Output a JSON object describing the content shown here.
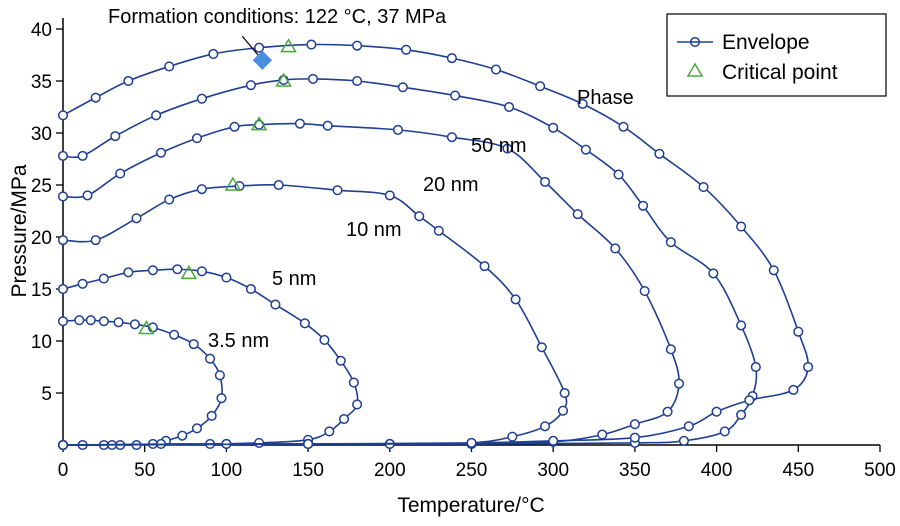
{
  "chart_data": {
    "type": "line",
    "xlabel": "Temperature/°C",
    "ylabel": "Pressure/MPa",
    "xlim": [
      0,
      500
    ],
    "ylim": [
      0,
      40
    ],
    "x_ticks": [
      0,
      50,
      100,
      150,
      200,
      250,
      300,
      350,
      400,
      450,
      500
    ],
    "y_ticks": [
      5,
      10,
      15,
      20,
      25,
      30,
      35,
      40
    ],
    "grid": false,
    "legend_position": "top-right",
    "legend": [
      {
        "label": "Envelope",
        "marker": "circle-line"
      },
      {
        "label": "Critical point",
        "marker": "triangle"
      }
    ],
    "colors": {
      "envelope": "#1f3f93",
      "critical": "#4aa83a",
      "formation": "#4a8fdf"
    },
    "annotations": {
      "formation": "Formation conditions: 122 °C, 37 MPa",
      "phase": "Phase",
      "labels": [
        "50 nm",
        "20 nm",
        "10 nm",
        "5 nm",
        "3.5 nm"
      ]
    },
    "formation_point": {
      "x": 122,
      "y": 37
    },
    "series": [
      {
        "label_index": 4,
        "critical": {
          "x": 51,
          "y": 11.2
        },
        "points": [
          [
            0,
            0
          ],
          [
            12,
            0
          ],
          [
            25,
            0
          ],
          [
            35,
            0
          ],
          [
            45,
            0
          ],
          [
            55,
            0.1
          ],
          [
            63,
            0.4
          ],
          [
            73,
            0.9
          ],
          [
            82,
            1.6
          ],
          [
            91,
            2.8
          ],
          [
            97,
            4.5
          ],
          [
            96,
            6.7
          ],
          [
            90,
            8.3
          ],
          [
            80,
            9.7
          ],
          [
            68,
            10.6
          ],
          [
            55,
            11.3
          ],
          [
            44,
            11.6
          ],
          [
            34,
            11.8
          ],
          [
            25,
            11.9
          ],
          [
            17,
            12
          ],
          [
            10,
            12
          ],
          [
            0,
            11.9
          ]
        ]
      },
      {
        "label_index": 3,
        "critical": {
          "x": 77,
          "y": 16.5
        },
        "points": [
          [
            0,
            0
          ],
          [
            30,
            0
          ],
          [
            60,
            0.1
          ],
          [
            90,
            0.1
          ],
          [
            120,
            0.2
          ],
          [
            150,
            0.5
          ],
          [
            163,
            1.3
          ],
          [
            172,
            2.5
          ],
          [
            180,
            3.9
          ],
          [
            178,
            6
          ],
          [
            170,
            8.1
          ],
          [
            160,
            10.1
          ],
          [
            148,
            11.7
          ],
          [
            130,
            13.5
          ],
          [
            115,
            15
          ],
          [
            100,
            16.1
          ],
          [
            85,
            16.7
          ],
          [
            70,
            16.9
          ],
          [
            55,
            16.8
          ],
          [
            40,
            16.6
          ],
          [
            25,
            16
          ],
          [
            12,
            15.5
          ],
          [
            0,
            15
          ]
        ]
      },
      {
        "label_index": 2,
        "critical": {
          "x": 104,
          "y": 25
        },
        "points": [
          [
            0,
            0
          ],
          [
            100,
            0.1
          ],
          [
            150,
            0.1
          ],
          [
            200,
            0.1
          ],
          [
            250,
            0.2
          ],
          [
            275,
            0.8
          ],
          [
            295,
            1.8
          ],
          [
            306,
            3.3
          ],
          [
            307,
            5
          ],
          [
            293,
            9.4
          ],
          [
            277,
            14
          ],
          [
            258,
            17.2
          ],
          [
            230,
            20.6
          ],
          [
            218,
            22
          ],
          [
            200,
            24
          ],
          [
            168,
            24.5
          ],
          [
            132,
            25
          ],
          [
            108,
            24.9
          ],
          [
            85,
            24.6
          ],
          [
            65,
            23.6
          ],
          [
            45,
            21.8
          ],
          [
            20,
            19.7
          ],
          [
            0,
            19.7
          ]
        ]
      },
      {
        "label_index": 1,
        "critical": {
          "x": 120,
          "y": 30.8
        },
        "points": [
          [
            0,
            0
          ],
          [
            100,
            0.1
          ],
          [
            200,
            0.1
          ],
          [
            250,
            0.1
          ],
          [
            300,
            0.3
          ],
          [
            330,
            1
          ],
          [
            350,
            2
          ],
          [
            370,
            3.2
          ],
          [
            377,
            5.9
          ],
          [
            372,
            9.2
          ],
          [
            356,
            14.8
          ],
          [
            338,
            18.9
          ],
          [
            315,
            22.2
          ],
          [
            295,
            25.3
          ],
          [
            272,
            28.5
          ],
          [
            238,
            29.6
          ],
          [
            205,
            30.3
          ],
          [
            162,
            30.7
          ],
          [
            145,
            30.9
          ],
          [
            120,
            30.8
          ],
          [
            105,
            30.6
          ],
          [
            82,
            29.5
          ],
          [
            60,
            28.1
          ],
          [
            35,
            26.1
          ],
          [
            15,
            24
          ],
          [
            0,
            23.9
          ]
        ]
      },
      {
        "label_index": 0,
        "critical": {
          "x": 135,
          "y": 35
        },
        "points": [
          [
            0,
            0
          ],
          [
            150,
            0.1
          ],
          [
            250,
            0.1
          ],
          [
            350,
            0.2
          ],
          [
            380,
            0.4
          ],
          [
            405,
            1.3
          ],
          [
            415,
            2.9
          ],
          [
            422,
            4.7
          ],
          [
            424,
            7.5
          ],
          [
            415,
            11.5
          ],
          [
            398,
            16.5
          ],
          [
            372,
            19.5
          ],
          [
            355,
            23
          ],
          [
            340,
            26
          ],
          [
            320,
            28.4
          ],
          [
            300,
            30.5
          ],
          [
            273,
            32.5
          ],
          [
            240,
            33.6
          ],
          [
            208,
            34.4
          ],
          [
            180,
            35
          ],
          [
            153,
            35.2
          ],
          [
            135,
            35.1
          ],
          [
            115,
            34.6
          ],
          [
            85,
            33.3
          ],
          [
            57,
            31.7
          ],
          [
            32,
            29.7
          ],
          [
            12,
            27.8
          ],
          [
            0,
            27.8
          ]
        ]
      },
      {
        "label_index": -1,
        "critical": {
          "x": 138,
          "y": 38.3
        },
        "points": [
          [
            0,
            0
          ],
          [
            150,
            0.1
          ],
          [
            250,
            0.2
          ],
          [
            300,
            0.4
          ],
          [
            350,
            0.7
          ],
          [
            383,
            1.8
          ],
          [
            400,
            3.2
          ],
          [
            420,
            4.3
          ],
          [
            447,
            5.3
          ],
          [
            456,
            7.5
          ],
          [
            450,
            10.9
          ],
          [
            435,
            16.8
          ],
          [
            415,
            21
          ],
          [
            392,
            24.8
          ],
          [
            365,
            28
          ],
          [
            343,
            30.6
          ],
          [
            318,
            32.8
          ],
          [
            292,
            34.5
          ],
          [
            265,
            36.1
          ],
          [
            238,
            37.2
          ],
          [
            210,
            38
          ],
          [
            180,
            38.4
          ],
          [
            152,
            38.5
          ],
          [
            120,
            38.2
          ],
          [
            92,
            37.6
          ],
          [
            65,
            36.4
          ],
          [
            40,
            35
          ],
          [
            20,
            33.4
          ],
          [
            0,
            31.7
          ]
        ]
      }
    ]
  }
}
